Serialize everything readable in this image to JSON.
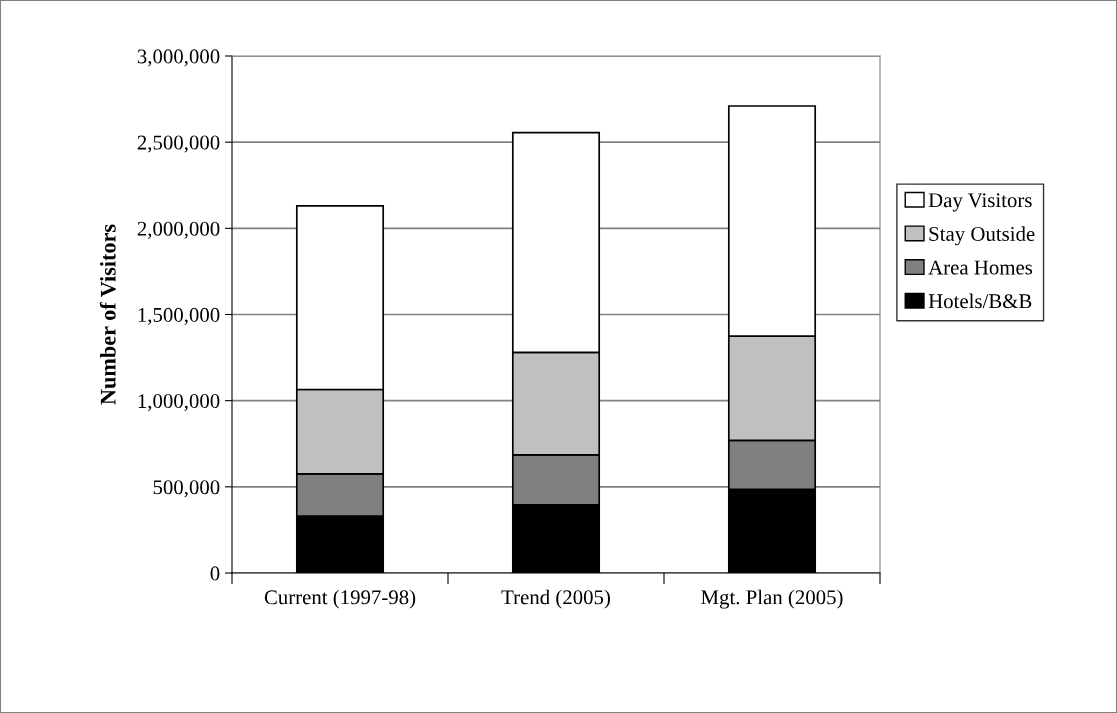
{
  "chart_data": {
    "type": "bar",
    "stacked": true,
    "ylabel": "Number of Visitors",
    "categories": [
      "Current (1997-98)",
      "Trend (2005)",
      "Mgt. Plan (2005)"
    ],
    "series": [
      {
        "name": "Hotels/B&B",
        "color": "#000000",
        "values": [
          330000,
          395000,
          485000
        ]
      },
      {
        "name": "Area Homes",
        "color": "#808080",
        "values": [
          245000,
          290000,
          285000
        ]
      },
      {
        "name": "Stay Outside",
        "color": "#c0c0c0",
        "values": [
          490000,
          595000,
          605000
        ]
      },
      {
        "name": "Day Visitors",
        "color": "#ffffff",
        "values": [
          1065000,
          1275000,
          1335000
        ]
      }
    ],
    "ylim": [
      0,
      3000000
    ],
    "yticks": [
      {
        "value": 0,
        "label": "0"
      },
      {
        "value": 500000,
        "label": "500,000"
      },
      {
        "value": 1000000,
        "label": "1,000,000"
      },
      {
        "value": 1500000,
        "label": "1,500,000"
      },
      {
        "value": 2000000,
        "label": "2,000,000"
      },
      {
        "value": 2500000,
        "label": "2,500,000"
      },
      {
        "value": 3000000,
        "label": "3,000,000"
      }
    ],
    "grid": "y",
    "legend": "right"
  }
}
